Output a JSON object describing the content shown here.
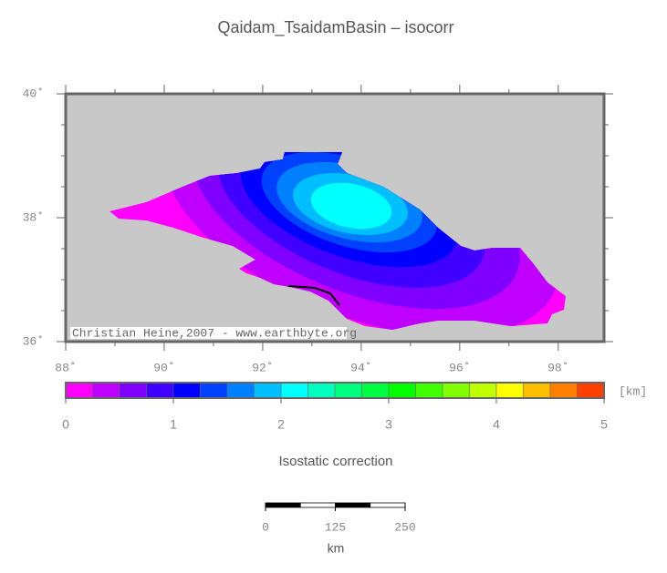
{
  "title": "Qaidam_TsaidamBasin – isocorr",
  "map": {
    "xlim": [
      88,
      98.93
    ],
    "ylim": [
      36,
      40
    ],
    "xticks": [
      {
        "value": 88,
        "label": "88˚"
      },
      {
        "value": 90,
        "label": "90˚"
      },
      {
        "value": 92,
        "label": "92˚"
      },
      {
        "value": 94,
        "label": "94˚"
      },
      {
        "value": 96,
        "label": "96˚"
      },
      {
        "value": 98,
        "label": "98˚"
      }
    ],
    "yticks": [
      {
        "value": 36,
        "label": "36˚"
      },
      {
        "value": 38,
        "label": "38˚"
      },
      {
        "value": 40,
        "label": "40˚"
      }
    ],
    "credit": "Christian Heine,2007 - www.earthbyte.org"
  },
  "colorbar": {
    "range": [
      0,
      5
    ],
    "ticks": [
      0,
      1,
      2,
      3,
      4,
      5
    ],
    "unit": "[km]",
    "label": "Isostatic correction",
    "colors": [
      "#ff00ff",
      "#bf00ff",
      "#8000ff",
      "#4000ff",
      "#0000ff",
      "#0040ff",
      "#0080ff",
      "#00bfff",
      "#00ffff",
      "#00ffbf",
      "#00ff80",
      "#00ff40",
      "#00ff00",
      "#40ff00",
      "#80ff00",
      "#bfff00",
      "#ffff00",
      "#ffbf00",
      "#ff8000",
      "#ff4000"
    ]
  },
  "scale_bar": {
    "range": [
      0,
      250
    ],
    "ticks": [
      0,
      125,
      250
    ],
    "unit": "km"
  }
}
